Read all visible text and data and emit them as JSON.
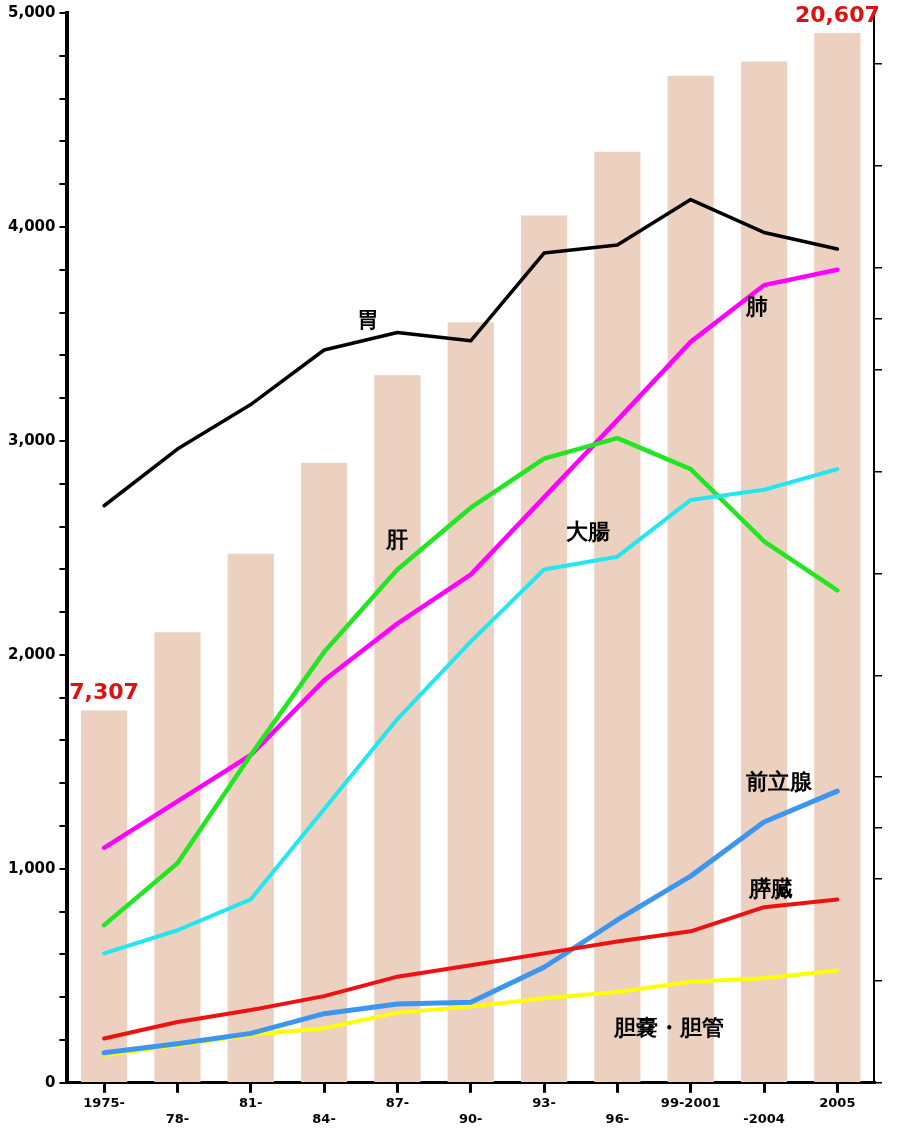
{
  "chart_data": {
    "type": "line",
    "categories": [
      "1975-",
      "78-",
      "81-",
      "84-",
      "87-",
      "90-",
      "93-",
      "96-",
      "99-2001",
      "-2004",
      "2005"
    ],
    "series": [
      {
        "type": "bar",
        "axis": "y2",
        "color": "#ecd0c0",
        "values": [
          7307,
          8846,
          10387,
          12171,
          13891,
          14931,
          17027,
          18276,
          19767,
          20049,
          20607
        ],
        "value_labels": [
          "7,307",
          null,
          null,
          null,
          null,
          null,
          null,
          null,
          null,
          null,
          "20,607"
        ]
      },
      {
        "name": "胃",
        "color": "#000000",
        "values": [
          2697,
          2962,
          3170,
          3425,
          3507,
          3468,
          3878,
          3916,
          4128,
          3974,
          3897
        ]
      },
      {
        "name": "肺",
        "color": "#ff00ff",
        "values": [
          1098,
          1315,
          1532,
          1881,
          2146,
          2375,
          2736,
          3097,
          3463,
          3728,
          3800
        ]
      },
      {
        "name": "肝",
        "color": "#22e622",
        "values": [
          737,
          1026,
          1532,
          2013,
          2399,
          2688,
          2917,
          3013,
          2868,
          2531,
          2302
        ]
      },
      {
        "name": "大腸",
        "color": "#22e6f0",
        "values": [
          605,
          713,
          857,
          1279,
          1700,
          2062,
          2399,
          2459,
          2724,
          2772,
          2868
        ]
      },
      {
        "name": "胆嚢・胆管",
        "color": "#ffff00",
        "values": [
          130,
          175,
          225,
          255,
          328,
          356,
          395,
          424,
          472,
          489,
          525
        ]
      },
      {
        "name": "前立腺",
        "color": "#3c96f0",
        "values": [
          140,
          183,
          231,
          323,
          368,
          376,
          540,
          761,
          966,
          1219,
          1363
        ]
      },
      {
        "name": "膵臓",
        "color": "#ee1111",
        "values": [
          207,
          284,
          340,
          405,
          496,
          549,
          605,
          660,
          708,
          821,
          857
        ]
      }
    ],
    "ylim": [
      0,
      5000
    ],
    "yticks": [
      0,
      {
        "value": 200,
        "label": null
      },
      {
        "value": 400,
        "label": null
      },
      {
        "value": 600,
        "label": null
      },
      {
        "value": 800,
        "label": null
      },
      {
        "value": 1000,
        "label": "1,000"
      },
      {
        "value": 1200,
        "label": null
      },
      {
        "value": 1400,
        "label": null
      },
      {
        "value": 1600,
        "label": null
      },
      {
        "value": 1800,
        "label": null
      },
      {
        "value": 2000,
        "label": "2,000"
      },
      {
        "value": 2200,
        "label": null
      },
      {
        "value": 2400,
        "label": null
      },
      {
        "value": 2600,
        "label": null
      },
      {
        "value": 2800,
        "label": null
      },
      {
        "value": 3000,
        "label": "3,000"
      },
      {
        "value": 3200,
        "label": null
      },
      {
        "value": 3400,
        "label": null
      },
      {
        "value": 3600,
        "label": null
      },
      {
        "value": 3800,
        "label": null
      },
      {
        "value": 4000,
        "label": "4,000"
      },
      {
        "value": 4200,
        "label": null
      },
      {
        "value": 4400,
        "label": null
      },
      {
        "value": 4600,
        "label": null
      },
      {
        "value": 4800,
        "label": null
      },
      {
        "value": 5000,
        "label": "5,000"
      }
    ],
    "y2lim": [
      0,
      21000
    ],
    "y2ticks": [
      {
        "value": 0,
        "label": null
      },
      {
        "value": 2000,
        "label": null
      },
      {
        "value": 4000,
        "label": null
      },
      {
        "value": 5000,
        "label": null
      },
      {
        "value": 6000,
        "label": null
      },
      {
        "value": 8000,
        "label": null
      },
      {
        "value": 10000,
        "label": null
      },
      {
        "value": 12000,
        "label": null
      },
      {
        "value": 14000,
        "label": null
      },
      {
        "value": 15000,
        "label": null
      },
      {
        "value": 16000,
        "label": null
      },
      {
        "value": 18000,
        "label": null
      },
      {
        "value": 20000,
        "label": null
      }
    ],
    "grid": false,
    "legend": false,
    "marker": "none",
    "line_style": "solid"
  }
}
